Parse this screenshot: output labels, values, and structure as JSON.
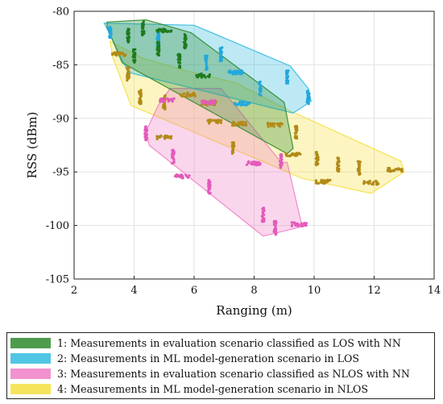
{
  "chart_data": {
    "type": "scatter",
    "xlabel": "Ranging (m)",
    "ylabel": "RSS (dBm)",
    "xlim": [
      2,
      14
    ],
    "ylim": [
      -105,
      -80
    ],
    "xticks": [
      2,
      4,
      6,
      8,
      10,
      12,
      14
    ],
    "yticks": [
      -80,
      -85,
      -90,
      -95,
      -100,
      -105
    ],
    "grid": true,
    "legend_position": "below",
    "series": [
      {
        "name": "1: Measurements in evaluation scenario classified as LOS with NN",
        "fill": "#2e8b2e",
        "point_color": "#1f7a1f",
        "hull": [
          [
            3.1,
            -81.0
          ],
          [
            4.4,
            -80.8
          ],
          [
            5.9,
            -82.0
          ],
          [
            9.0,
            -88.5
          ],
          [
            9.3,
            -92.8
          ],
          [
            9.1,
            -93.3
          ],
          [
            3.6,
            -84.8
          ],
          [
            3.1,
            -81.5
          ]
        ],
        "clusters": [
          [
            3.8,
            -82.3
          ],
          [
            4.3,
            -81.6
          ],
          [
            5.0,
            -81.8
          ],
          [
            5.7,
            -82.8
          ],
          [
            4.0,
            -84.2
          ],
          [
            4.8,
            -83.5
          ],
          [
            5.5,
            -84.6
          ],
          [
            6.3,
            -86.0
          ]
        ]
      },
      {
        "name": "2: Measurements in ML model-generation scenario in LOS",
        "fill": "#33bbe0",
        "point_color": "#22a8dd",
        "hull": [
          [
            3.0,
            -81.1
          ],
          [
            6.0,
            -81.3
          ],
          [
            9.2,
            -85.1
          ],
          [
            9.8,
            -87.2
          ],
          [
            9.9,
            -88.4
          ],
          [
            9.3,
            -89.5
          ],
          [
            3.8,
            -85.7
          ],
          [
            3.2,
            -82.2
          ]
        ],
        "clusters": [
          [
            3.2,
            -82.0
          ],
          [
            4.8,
            -82.6
          ],
          [
            6.4,
            -84.8
          ],
          [
            7.4,
            -85.7
          ],
          [
            8.2,
            -87.2
          ],
          [
            9.1,
            -86.1
          ],
          [
            9.8,
            -88.0
          ],
          [
            7.6,
            -88.6
          ],
          [
            6.9,
            -84.0
          ]
        ]
      },
      {
        "name": "3: Measurements in evaluation scenario classified as NLOS with NN",
        "fill": "#f080c8",
        "point_color": "#e35aba",
        "hull": [
          [
            4.4,
            -91.2
          ],
          [
            4.8,
            -88.8
          ],
          [
            5.2,
            -87.2
          ],
          [
            6.9,
            -87.2
          ],
          [
            8.9,
            -94.1
          ],
          [
            9.1,
            -94.1
          ],
          [
            9.6,
            -100.1
          ],
          [
            8.3,
            -101.0
          ],
          [
            4.5,
            -92.5
          ]
        ],
        "clusters": [
          [
            4.4,
            -91.4
          ],
          [
            5.3,
            -93.6
          ],
          [
            5.6,
            -95.4
          ],
          [
            6.5,
            -96.4
          ],
          [
            8.0,
            -94.2
          ],
          [
            8.3,
            -99.0
          ],
          [
            8.7,
            -100.2
          ],
          [
            9.5,
            -99.9
          ],
          [
            5.1,
            -88.3
          ],
          [
            6.5,
            -88.5
          ],
          [
            8.9,
            -94.0
          ]
        ]
      },
      {
        "name": "4: Measurements in ML model-generation scenario in NLOS",
        "fill": "#f5e040",
        "point_color": "#b38a17",
        "hull": [
          [
            3.2,
            -82.8
          ],
          [
            4.3,
            -84.4
          ],
          [
            5.8,
            -85.6
          ],
          [
            7.4,
            -86.7
          ],
          [
            9.2,
            -89.3
          ],
          [
            12.9,
            -94.0
          ],
          [
            13.0,
            -95.0
          ],
          [
            11.9,
            -97.0
          ],
          [
            9.6,
            -95.6
          ],
          [
            4.5,
            -89.5
          ],
          [
            3.9,
            -88.8
          ],
          [
            3.3,
            -84.4
          ]
        ],
        "clusters": [
          [
            3.5,
            -84.0
          ],
          [
            3.8,
            -85.8
          ],
          [
            4.2,
            -88.0
          ],
          [
            5.0,
            -88.5
          ],
          [
            5.8,
            -87.8
          ],
          [
            6.5,
            -88.6
          ],
          [
            6.7,
            -90.3
          ],
          [
            7.5,
            -90.5
          ],
          [
            8.7,
            -90.6
          ],
          [
            7.3,
            -92.7
          ],
          [
            5.0,
            -91.8
          ],
          [
            9.3,
            -93.4
          ],
          [
            10.1,
            -93.8
          ],
          [
            10.8,
            -94.3
          ],
          [
            11.5,
            -94.6
          ],
          [
            12.7,
            -94.8
          ],
          [
            10.3,
            -95.9
          ],
          [
            11.9,
            -96.0
          ],
          [
            9.4,
            -91.3
          ]
        ]
      }
    ]
  }
}
